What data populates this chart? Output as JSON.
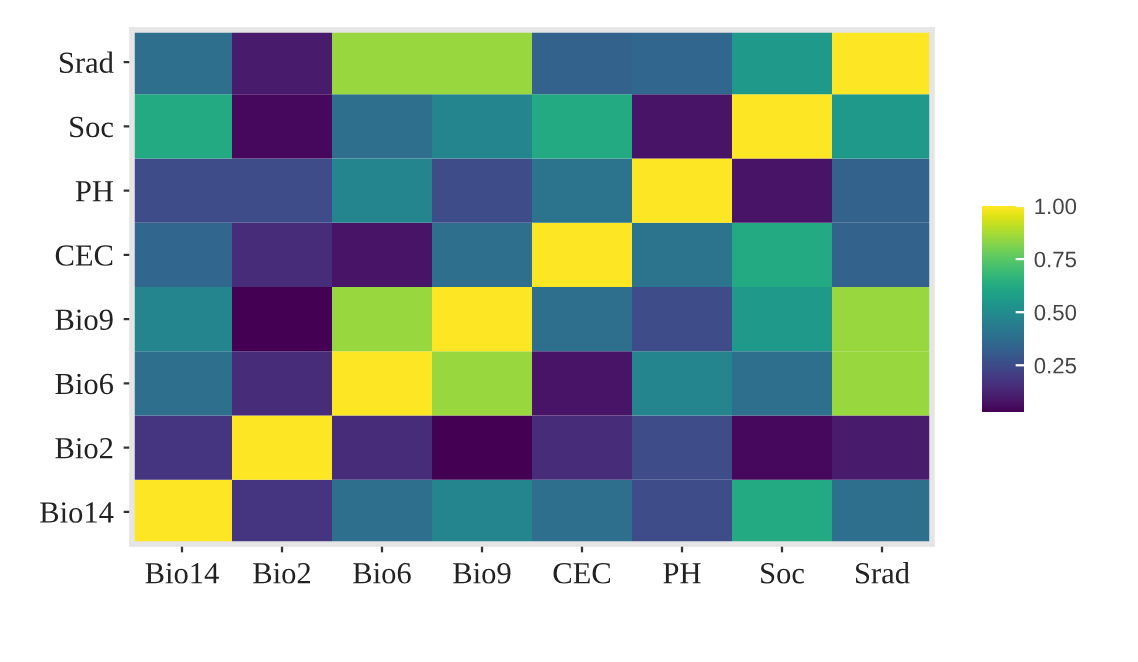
{
  "chart_data": {
    "type": "heatmap",
    "categories": [
      "Bio14",
      "Bio2",
      "Bio6",
      "Bio9",
      "CEC",
      "PH",
      "Soc",
      "Srad"
    ],
    "y_categories": [
      "Srad",
      "Soc",
      "PH",
      "CEC",
      "Bio9",
      "Bio6",
      "Bio2",
      "Bio14"
    ],
    "cells": [
      [
        0.38,
        0.1,
        0.85,
        0.85,
        0.33,
        0.35,
        0.55,
        1.0
      ],
      [
        0.62,
        0.05,
        0.38,
        0.47,
        0.62,
        0.08,
        1.0,
        0.55
      ],
      [
        0.25,
        0.25,
        0.47,
        0.25,
        0.4,
        1.0,
        0.08,
        0.33
      ],
      [
        0.35,
        0.15,
        0.08,
        0.38,
        1.0,
        0.4,
        0.62,
        0.33
      ],
      [
        0.47,
        0.03,
        0.85,
        1.0,
        0.38,
        0.25,
        0.55,
        0.85
      ],
      [
        0.38,
        0.15,
        1.0,
        0.85,
        0.08,
        0.47,
        0.38,
        0.85
      ],
      [
        0.18,
        1.0,
        0.15,
        0.03,
        0.15,
        0.25,
        0.05,
        0.1
      ],
      [
        1.0,
        0.18,
        0.38,
        0.47,
        0.38,
        0.25,
        0.62,
        0.38
      ]
    ],
    "clim": [
      0.03,
      1.0
    ],
    "cticks": [
      {
        "value": 0.25,
        "label": "0.25"
      },
      {
        "value": 0.5,
        "label": "0.50"
      },
      {
        "value": 0.75,
        "label": "0.75"
      },
      {
        "value": 1.0,
        "label": "1.00"
      }
    ]
  }
}
